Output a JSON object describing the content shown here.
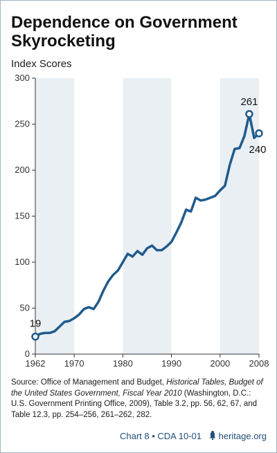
{
  "title": "Dependence on Government Skyrocketing",
  "footer": {
    "chart_id": "Chart 8 • CDA 10-01",
    "site": "heritage.org"
  },
  "source": {
    "label": "Source:",
    "text_1": " Office of Management and Budget, ",
    "italic_1": "Historical Tables, Budget of the United States Government, Fiscal Year 2010",
    "text_2": " (Washington, D.C.: U.S. Government Printing Office, 2009), Table 3.2, pp. 56, 62, 67, and Table 12.3, pp. 254–256, 261–262, 282."
  },
  "colors": {
    "line": "#1f5b8c",
    "band": "#e9eff3",
    "axis": "#333333"
  },
  "chart_data": {
    "type": "line",
    "ylabel": "Index Scores",
    "xlim": [
      1962,
      2008
    ],
    "ylim": [
      0,
      300
    ],
    "x_ticks": [
      1962,
      1970,
      1980,
      1990,
      2000,
      2008
    ],
    "y_ticks": [
      0,
      50,
      100,
      150,
      200,
      250,
      300
    ],
    "shaded_bands": [
      [
        1962,
        1970
      ],
      [
        1980,
        1990
      ],
      [
        2000,
        2008
      ]
    ],
    "grid": false,
    "series": [
      {
        "x": [
          1962,
          1963,
          1964,
          1965,
          1966,
          1967,
          1968,
          1969,
          1970,
          1971,
          1972,
          1973,
          1974,
          1975,
          1976,
          1977,
          1978,
          1979,
          1980,
          1981,
          1982,
          1983,
          1984,
          1985,
          1986,
          1987,
          1988,
          1989,
          1990,
          1991,
          1992,
          1993,
          1994,
          1995,
          1996,
          1997,
          1998,
          1999,
          2000,
          2001,
          2002,
          2003,
          2004,
          2005,
          2006,
          2007,
          2008
        ],
        "y": [
          19,
          22,
          23,
          23,
          25,
          30,
          35,
          36,
          39,
          43,
          49,
          51,
          49,
          57,
          69,
          79,
          86,
          91,
          100,
          109,
          106,
          112,
          108,
          115,
          118,
          113,
          113,
          117,
          122,
          132,
          143,
          157,
          155,
          170,
          167,
          168,
          170,
          172,
          178,
          183,
          206,
          223,
          224,
          237,
          261,
          235,
          240
        ]
      }
    ],
    "annotations": [
      {
        "x": 1962,
        "y": 19,
        "label": "19"
      },
      {
        "x": 2006,
        "y": 261,
        "label": "261"
      },
      {
        "x": 2008,
        "y": 240,
        "label": "240"
      }
    ]
  }
}
